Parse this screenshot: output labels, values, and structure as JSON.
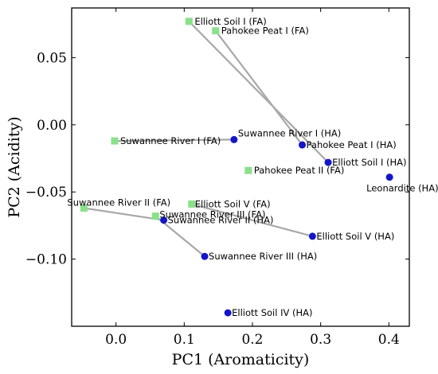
{
  "chart_data": {
    "type": "scatter",
    "xlabel": "PC1 (Aromaticity)",
    "ylabel": "PC2 (Acidity)",
    "xlim": [
      -0.065,
      0.43
    ],
    "ylim": [
      -0.15,
      0.087
    ],
    "xticks": [
      0.0,
      0.1,
      0.2,
      0.3,
      0.4
    ],
    "xtick_labels": [
      "0.0",
      "0.1",
      "0.2",
      "0.3",
      "0.4"
    ],
    "yticks": [
      0.05,
      0.0,
      -0.05,
      -0.1
    ],
    "ytick_labels": [
      "0.05",
      "0.00",
      "−0.05",
      "−0.10"
    ],
    "grid": false,
    "colors": {
      "HA": "#1515c8",
      "FA": "#8be08b",
      "line": "#a8a8a8"
    },
    "series": [
      {
        "group": "FA",
        "marker": "square",
        "points": [
          {
            "label": "Elliott Soil I (FA)",
            "x": 0.107,
            "y": 0.077
          },
          {
            "label": "Pahokee Peat I (FA)",
            "x": 0.146,
            "y": 0.07
          },
          {
            "label": "Suwannee River I (FA)",
            "x": -0.002,
            "y": -0.012
          },
          {
            "label": "Pahokee Peat II (FA)",
            "x": 0.194,
            "y": -0.034
          },
          {
            "label": "Suwannee River II (FA)",
            "x": -0.047,
            "y": -0.062
          },
          {
            "label": "Elliott Soil V (FA)",
            "x": 0.111,
            "y": -0.059
          },
          {
            "label": "Suwannee River III (FA)",
            "x": 0.058,
            "y": -0.068
          }
        ]
      },
      {
        "group": "HA",
        "marker": "circle",
        "points": [
          {
            "label": "Suwannee River I (HA)",
            "x": 0.173,
            "y": -0.011
          },
          {
            "label": "Pahokee Peat I (HA)",
            "x": 0.273,
            "y": -0.015
          },
          {
            "label": "Elliott Soil I (HA)",
            "x": 0.311,
            "y": -0.028
          },
          {
            "label": "Leonardite (HA)",
            "x": 0.401,
            "y": -0.039
          },
          {
            "label": "Suwannee River II (HA)",
            "x": 0.07,
            "y": -0.071
          },
          {
            "label": "Elliott Soil V (HA)",
            "x": 0.288,
            "y": -0.083
          },
          {
            "label": "Suwannee River III (HA)",
            "x": 0.13,
            "y": -0.098
          },
          {
            "label": "Elliott Soil IV (HA)",
            "x": 0.164,
            "y": -0.14
          }
        ]
      }
    ],
    "pairs": [
      [
        "Elliott Soil I (FA)",
        "Elliott Soil I (HA)"
      ],
      [
        "Pahokee Peat I (FA)",
        "Pahokee Peat I (HA)"
      ],
      [
        "Suwannee River I (FA)",
        "Suwannee River I (HA)"
      ],
      [
        "Suwannee River II (FA)",
        "Suwannee River II (HA)"
      ],
      [
        "Elliott Soil V (FA)",
        "Elliott Soil V (HA)"
      ],
      [
        "Suwannee River III (FA)",
        "Suwannee River III (HA)"
      ]
    ]
  }
}
